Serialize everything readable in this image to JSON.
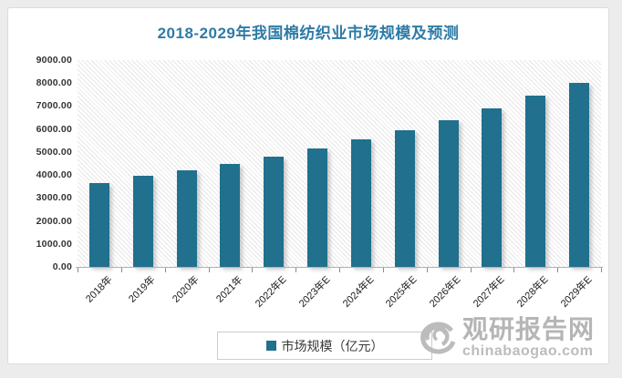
{
  "title": "2018-2029年我国棉纺织业市场规模及预测",
  "title_color": "#2E7BA6",
  "chart_data": {
    "type": "bar",
    "title": "2018-2029年我国棉纺织业市场规模及预测",
    "categories": [
      "2018年",
      "2019年",
      "2020年",
      "2021年",
      "2022年E",
      "2023年E",
      "2024年E",
      "2025年E",
      "2026年E",
      "2027年E",
      "2028年E",
      "2029年E"
    ],
    "values": [
      3650,
      3950,
      4200,
      4480,
      4800,
      5150,
      5550,
      5940,
      6380,
      6880,
      7440,
      7990
    ],
    "series_name": "市场规模（亿元）",
    "xlabel": "",
    "ylabel": "",
    "ylim": [
      0,
      9000
    ],
    "y_ticks": [
      "9000.00",
      "8000.00",
      "7000.00",
      "6000.00",
      "5000.00",
      "4000.00",
      "3000.00",
      "2000.00",
      "1000.00",
      "0.00"
    ],
    "bar_color": "#20708E",
    "grid": false,
    "plot_background": "diagonal-hatch",
    "legend_position": "bottom"
  },
  "legend": {
    "label": "市场规模（亿元）",
    "marker_color": "#20708E"
  },
  "watermark": {
    "name": "观研报告网",
    "domain": "chinabaogao.com",
    "color": "#b5b5b5"
  }
}
